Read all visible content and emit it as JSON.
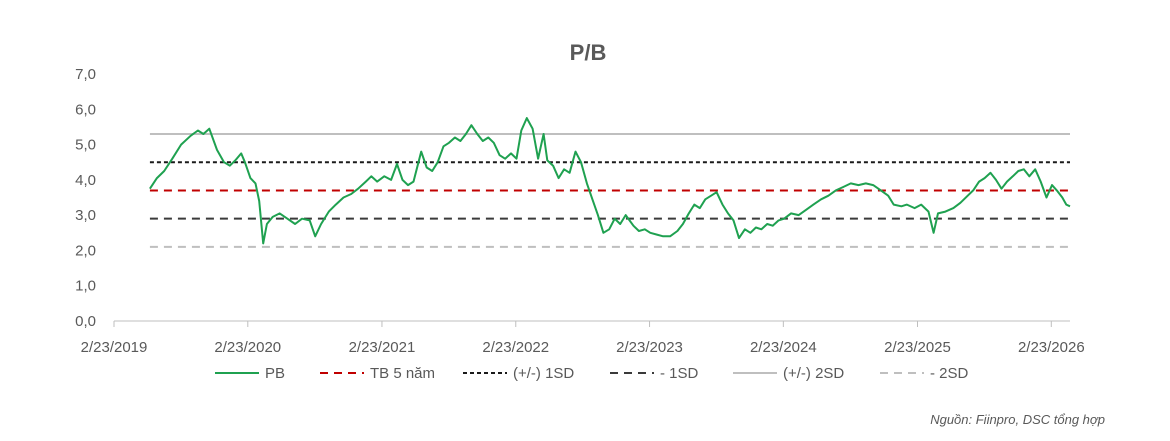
{
  "chart_data": {
    "type": "line",
    "title": "P/B",
    "source": "Nguồn: Fiinpro, DSC tổng hợp",
    "ylim": [
      0,
      7
    ],
    "y_ticks": [
      "0,0",
      "1,0",
      "2,0",
      "3,0",
      "4,0",
      "5,0",
      "6,0",
      "7,0"
    ],
    "x_ticks": [
      "2/23/2019",
      "2/23/2020",
      "2/23/2021",
      "2/23/2022",
      "2/23/2023",
      "2/23/2024",
      "2/23/2025",
      "2/23/2026"
    ],
    "x_range": [
      "2019-02-23",
      "2026-04-15"
    ],
    "series": [
      {
        "name": "PB",
        "color": "#1fa150",
        "style": "solid",
        "points": [
          [
            "2019-06-01",
            3.75
          ],
          [
            "2019-06-20",
            4.05
          ],
          [
            "2019-07-10",
            4.25
          ],
          [
            "2019-08-01",
            4.6
          ],
          [
            "2019-08-25",
            5.0
          ],
          [
            "2019-09-20",
            5.25
          ],
          [
            "2019-10-10",
            5.4
          ],
          [
            "2019-10-25",
            5.3
          ],
          [
            "2019-11-10",
            5.45
          ],
          [
            "2019-12-01",
            4.85
          ],
          [
            "2019-12-20",
            4.5
          ],
          [
            "2020-01-05",
            4.4
          ],
          [
            "2020-01-20",
            4.55
          ],
          [
            "2020-02-05",
            4.75
          ],
          [
            "2020-02-15",
            4.5
          ],
          [
            "2020-03-01",
            4.05
          ],
          [
            "2020-03-15",
            3.9
          ],
          [
            "2020-03-25",
            3.4
          ],
          [
            "2020-04-05",
            2.2
          ],
          [
            "2020-04-15",
            2.75
          ],
          [
            "2020-05-01",
            2.95
          ],
          [
            "2020-05-20",
            3.05
          ],
          [
            "2020-06-10",
            2.9
          ],
          [
            "2020-07-01",
            2.75
          ],
          [
            "2020-07-20",
            2.9
          ],
          [
            "2020-08-10",
            2.85
          ],
          [
            "2020-08-25",
            2.4
          ],
          [
            "2020-09-10",
            2.75
          ],
          [
            "2020-10-01",
            3.1
          ],
          [
            "2020-10-20",
            3.3
          ],
          [
            "2020-11-10",
            3.5
          ],
          [
            "2020-12-01",
            3.6
          ],
          [
            "2020-12-20",
            3.75
          ],
          [
            "2021-01-10",
            3.95
          ],
          [
            "2021-01-25",
            4.1
          ],
          [
            "2021-02-10",
            3.95
          ],
          [
            "2021-03-01",
            4.1
          ],
          [
            "2021-03-20",
            4.0
          ],
          [
            "2021-04-05",
            4.45
          ],
          [
            "2021-04-20",
            4.0
          ],
          [
            "2021-05-05",
            3.85
          ],
          [
            "2021-05-20",
            3.95
          ],
          [
            "2021-06-10",
            4.8
          ],
          [
            "2021-06-25",
            4.35
          ],
          [
            "2021-07-10",
            4.25
          ],
          [
            "2021-07-25",
            4.5
          ],
          [
            "2021-08-10",
            4.95
          ],
          [
            "2021-08-25",
            5.05
          ],
          [
            "2021-09-10",
            5.2
          ],
          [
            "2021-09-25",
            5.1
          ],
          [
            "2021-10-10",
            5.3
          ],
          [
            "2021-10-25",
            5.55
          ],
          [
            "2021-11-10",
            5.3
          ],
          [
            "2021-11-25",
            5.1
          ],
          [
            "2021-12-10",
            5.2
          ],
          [
            "2021-12-25",
            5.05
          ],
          [
            "2022-01-10",
            4.7
          ],
          [
            "2022-01-25",
            4.6
          ],
          [
            "2022-02-10",
            4.75
          ],
          [
            "2022-02-25",
            4.6
          ],
          [
            "2022-03-10",
            5.4
          ],
          [
            "2022-03-25",
            5.75
          ],
          [
            "2022-04-10",
            5.45
          ],
          [
            "2022-04-25",
            4.6
          ],
          [
            "2022-05-10",
            5.3
          ],
          [
            "2022-05-20",
            4.55
          ],
          [
            "2022-06-05",
            4.4
          ],
          [
            "2022-06-20",
            4.05
          ],
          [
            "2022-07-05",
            4.3
          ],
          [
            "2022-07-20",
            4.2
          ],
          [
            "2022-08-05",
            4.8
          ],
          [
            "2022-08-20",
            4.5
          ],
          [
            "2022-09-05",
            3.9
          ],
          [
            "2022-09-20",
            3.45
          ],
          [
            "2022-10-05",
            3.0
          ],
          [
            "2022-10-20",
            2.5
          ],
          [
            "2022-11-05",
            2.6
          ],
          [
            "2022-11-20",
            2.9
          ],
          [
            "2022-12-05",
            2.75
          ],
          [
            "2022-12-20",
            3.0
          ],
          [
            "2023-01-10",
            2.7
          ],
          [
            "2023-01-25",
            2.55
          ],
          [
            "2023-02-10",
            2.6
          ],
          [
            "2023-02-25",
            2.5
          ],
          [
            "2023-03-15",
            2.45
          ],
          [
            "2023-04-01",
            2.4
          ],
          [
            "2023-04-20",
            2.4
          ],
          [
            "2023-05-10",
            2.55
          ],
          [
            "2023-05-25",
            2.75
          ],
          [
            "2023-06-10",
            3.05
          ],
          [
            "2023-06-25",
            3.3
          ],
          [
            "2023-07-10",
            3.2
          ],
          [
            "2023-07-25",
            3.45
          ],
          [
            "2023-08-10",
            3.55
          ],
          [
            "2023-08-25",
            3.65
          ],
          [
            "2023-09-10",
            3.3
          ],
          [
            "2023-09-25",
            3.05
          ],
          [
            "2023-10-10",
            2.85
          ],
          [
            "2023-10-25",
            2.35
          ],
          [
            "2023-11-10",
            2.6
          ],
          [
            "2023-11-25",
            2.5
          ],
          [
            "2023-12-10",
            2.65
          ],
          [
            "2023-12-25",
            2.6
          ],
          [
            "2024-01-10",
            2.75
          ],
          [
            "2024-01-25",
            2.7
          ],
          [
            "2024-02-10",
            2.85
          ],
          [
            "2024-02-25",
            2.9
          ],
          [
            "2024-03-15",
            3.05
          ],
          [
            "2024-04-05",
            3.0
          ],
          [
            "2024-04-25",
            3.15
          ],
          [
            "2024-05-15",
            3.3
          ],
          [
            "2024-06-05",
            3.45
          ],
          [
            "2024-06-25",
            3.55
          ],
          [
            "2024-07-15",
            3.7
          ],
          [
            "2024-08-05",
            3.8
          ],
          [
            "2024-08-25",
            3.9
          ],
          [
            "2024-09-15",
            3.85
          ],
          [
            "2024-10-05",
            3.9
          ],
          [
            "2024-10-25",
            3.85
          ],
          [
            "2024-11-15",
            3.7
          ],
          [
            "2024-12-05",
            3.55
          ],
          [
            "2024-12-20",
            3.3
          ],
          [
            "2025-01-10",
            3.25
          ],
          [
            "2025-01-25",
            3.3
          ],
          [
            "2025-02-15",
            3.2
          ],
          [
            "2025-03-05",
            3.3
          ],
          [
            "2025-03-25",
            3.1
          ],
          [
            "2025-04-08",
            2.5
          ],
          [
            "2025-04-20",
            3.05
          ],
          [
            "2025-05-10",
            3.1
          ],
          [
            "2025-06-01",
            3.2
          ],
          [
            "2025-06-20",
            3.35
          ],
          [
            "2025-07-10",
            3.55
          ],
          [
            "2025-07-25",
            3.7
          ],
          [
            "2025-08-10",
            3.95
          ],
          [
            "2025-08-25",
            4.05
          ],
          [
            "2025-09-10",
            4.2
          ],
          [
            "2025-09-25",
            4.0
          ],
          [
            "2025-10-10",
            3.75
          ],
          [
            "2025-10-25",
            3.95
          ],
          [
            "2025-11-10",
            4.1
          ],
          [
            "2025-11-25",
            4.25
          ],
          [
            "2025-12-10",
            4.3
          ],
          [
            "2025-12-25",
            4.1
          ],
          [
            "2026-01-10",
            4.3
          ],
          [
            "2026-01-25",
            3.95
          ],
          [
            "2026-02-10",
            3.5
          ],
          [
            "2026-02-25",
            3.85
          ],
          [
            "2026-03-10",
            3.7
          ],
          [
            "2026-03-25",
            3.5
          ],
          [
            "2026-04-05",
            3.3
          ],
          [
            "2026-04-15",
            3.25
          ]
        ]
      },
      {
        "name": "TB 5 năm",
        "color": "#c00000",
        "style": "dashed",
        "value": 3.7
      },
      {
        "name": "(+/-) 1SD",
        "color": "#1a1a1a",
        "style": "dotted",
        "value": 4.5
      },
      {
        "name": "- 1SD",
        "color": "#3a3a3a",
        "style": "dashed",
        "value": 2.9
      },
      {
        "name": "(+/-) 2SD",
        "color": "#bfbfbf",
        "style": "solid",
        "value": 5.3
      },
      {
        "name": "- 2SD",
        "color": "#bfbfbf",
        "style": "dashed",
        "value": 2.1
      }
    ],
    "legend_position": "bottom",
    "grid": false
  }
}
